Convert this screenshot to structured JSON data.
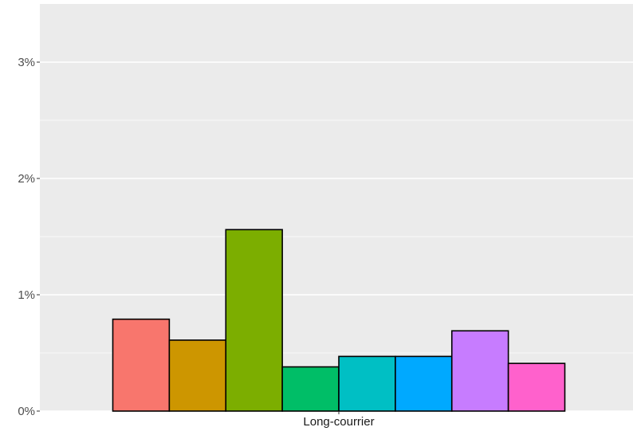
{
  "chart_data": {
    "type": "bar",
    "categories": [
      "Long-courrier"
    ],
    "series": [
      {
        "values": [
          0.79
        ],
        "color": "#F8766D"
      },
      {
        "values": [
          0.61
        ],
        "color": "#CD9600"
      },
      {
        "values": [
          1.56
        ],
        "color": "#7CAE00"
      },
      {
        "values": [
          0.38
        ],
        "color": "#00BE67"
      },
      {
        "values": [
          0.47
        ],
        "color": "#00BFC4"
      },
      {
        "values": [
          0.47
        ],
        "color": "#00A9FF"
      },
      {
        "values": [
          0.69
        ],
        "color": "#C77CFF"
      },
      {
        "values": [
          0.41
        ],
        "color": "#FF61CC"
      }
    ],
    "y_ticks": [
      {
        "value": 0,
        "label": "0%"
      },
      {
        "value": 1,
        "label": "1%"
      },
      {
        "value": 2,
        "label": "2%"
      },
      {
        "value": 3,
        "label": "3%"
      }
    ],
    "ylim": [
      0,
      3.5
    ],
    "grid": true,
    "panel_background": "#EBEBEB",
    "grid_color": "#FFFFFF",
    "legend": "none"
  }
}
